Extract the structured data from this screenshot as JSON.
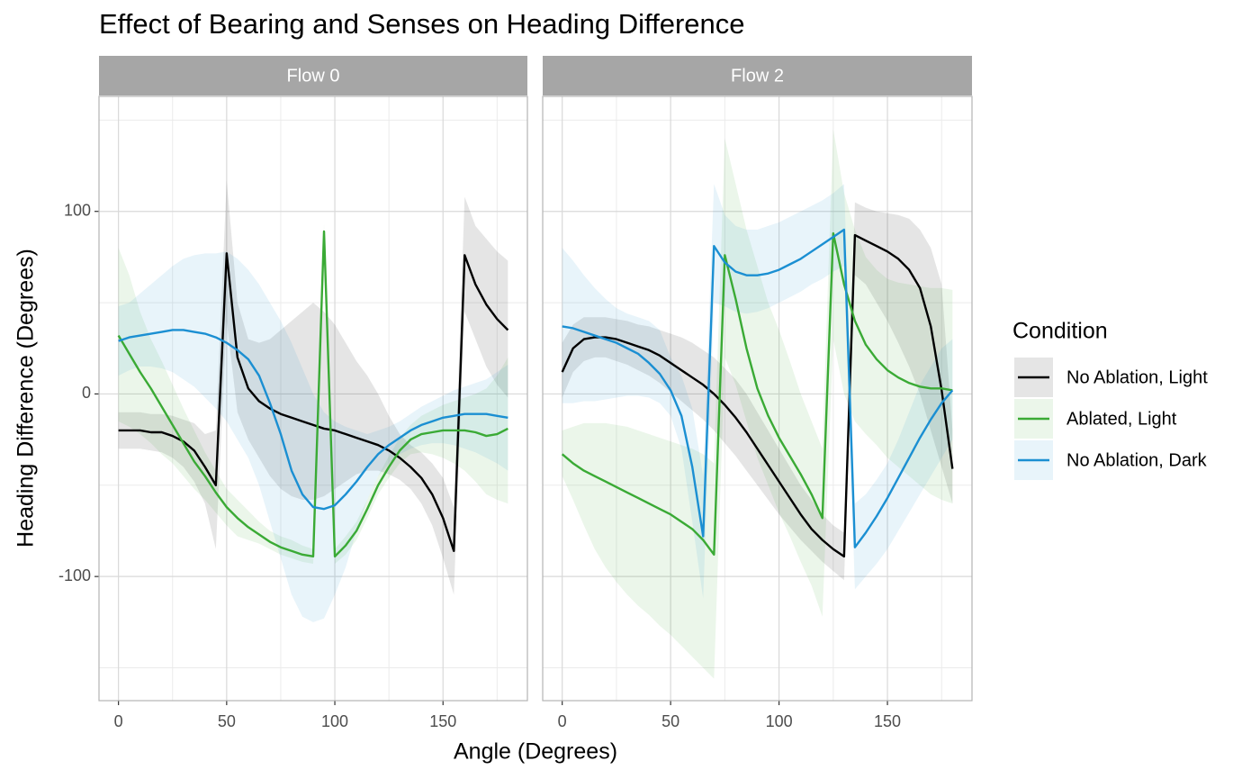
{
  "chart_data": {
    "type": "line",
    "title": "Effect of Bearing and Senses on Heading Difference",
    "xlabel": "Angle (Degrees)",
    "ylabel": "Heading Difference (Degrees)",
    "legend_title": "Condition",
    "legend": "right",
    "grid": true,
    "x": [
      0,
      5,
      10,
      15,
      20,
      25,
      30,
      35,
      40,
      45,
      50,
      55,
      60,
      65,
      70,
      75,
      80,
      85,
      90,
      95,
      100,
      105,
      110,
      115,
      120,
      125,
      130,
      135,
      140,
      145,
      150,
      155,
      160,
      165,
      170,
      175,
      180
    ],
    "xlim": [
      -9,
      189
    ],
    "xticks": [
      0,
      50,
      100,
      150
    ],
    "minor_xticks": [
      25,
      75,
      125,
      175
    ],
    "ylim": [
      -168,
      163
    ],
    "yticks": [
      -100,
      0,
      100
    ],
    "minor_yticks": [
      -150,
      -50,
      50,
      150
    ],
    "facets": [
      {
        "name": "Flow 0",
        "series": [
          {
            "name": "No Ablation, Light",
            "color": "#000000",
            "values": [
              -20,
              -20,
              -20,
              -21,
              -21,
              -23,
              -26,
              -31,
              -40,
              -50,
              77,
              20,
              3,
              -4,
              -8,
              -11,
              -13,
              -15,
              -17,
              -19,
              -20,
              -22,
              -24,
              -26,
              -28,
              -31,
              -35,
              -40,
              -46,
              -55,
              -68,
              -86,
              76,
              60,
              49,
              41,
              35
            ],
            "lower": [
              -30,
              -30,
              -30,
              -31,
              -32,
              -35,
              -40,
              -48,
              -60,
              -85,
              40,
              -10,
              -25,
              -35,
              -45,
              -52,
              -56,
              -58,
              -58,
              -56,
              -52,
              -48,
              -44,
              -42,
              -42,
              -44,
              -47,
              -52,
              -60,
              -72,
              -90,
              -110,
              45,
              30,
              15,
              5,
              -2
            ],
            "upper": [
              -10,
              -10,
              -10,
              -11,
              -11,
              -12,
              -14,
              -16,
              -22,
              -20,
              117,
              50,
              30,
              28,
              30,
              35,
              40,
              45,
              50,
              45,
              38,
              28,
              18,
              10,
              0,
              -12,
              -22,
              -28,
              -32,
              -38,
              -46,
              -62,
              108,
              92,
              85,
              78,
              73
            ]
          },
          {
            "name": "Ablated, Light",
            "color": "#3aaa35",
            "values": [
              32,
              22,
              12,
              3,
              -7,
              -17,
              -27,
              -37,
              -45,
              -54,
              -62,
              -68,
              -73,
              -77,
              -81,
              -84,
              -86,
              -88,
              -89,
              89,
              -89,
              -83,
              -75,
              -63,
              -50,
              -40,
              -31,
              -25,
              -22,
              -21,
              -20,
              -20,
              -20,
              -21,
              -23,
              -22,
              -19
            ],
            "lower": [
              -15,
              -18,
              -22,
              -27,
              -33,
              -38,
              -45,
              -52,
              -58,
              -65,
              -72,
              -78,
              -80,
              -82,
              -85,
              -88,
              -90,
              -92,
              -93,
              85,
              -93,
              -88,
              -80,
              -68,
              -55,
              -46,
              -38,
              -33,
              -32,
              -33,
              -35,
              -38,
              -42,
              -48,
              -55,
              -58,
              -60
            ],
            "upper": [
              80,
              65,
              45,
              30,
              18,
              5,
              -8,
              -20,
              -32,
              -42,
              -52,
              -58,
              -64,
              -70,
              -75,
              -78,
              -80,
              -83,
              -85,
              93,
              -85,
              -78,
              -70,
              -58,
              -45,
              -34,
              -24,
              -17,
              -12,
              -9,
              -6,
              -4,
              -2,
              0,
              3,
              10,
              20
            ]
          },
          {
            "name": "No Ablation, Dark",
            "color": "#1b8fd2",
            "values": [
              29,
              31,
              32,
              33,
              34,
              35,
              35,
              34,
              33,
              31,
              28,
              24,
              19,
              10,
              -5,
              -22,
              -42,
              -55,
              -62,
              -63,
              -61,
              -55,
              -48,
              -40,
              -33,
              -28,
              -24,
              -20,
              -17,
              -15,
              -13,
              -12,
              -11,
              -11,
              -11,
              -12,
              -13
            ],
            "lower": [
              10,
              13,
              15,
              15,
              14,
              12,
              8,
              4,
              -2,
              -8,
              -15,
              -25,
              -35,
              -50,
              -70,
              -90,
              -110,
              -122,
              -125,
              -123,
              -110,
              -95,
              -75,
              -58,
              -45,
              -38,
              -33,
              -30,
              -28,
              -27,
              -27,
              -28,
              -30,
              -32,
              -35,
              -38,
              -42
            ],
            "upper": [
              48,
              50,
              55,
              60,
              65,
              70,
              74,
              76,
              77,
              77,
              78,
              74,
              68,
              60,
              50,
              40,
              28,
              14,
              0,
              -10,
              -15,
              -18,
              -20,
              -22,
              -20,
              -18,
              -15,
              -11,
              -7,
              -4,
              -1,
              2,
              4,
              6,
              8,
              12,
              16
            ]
          }
        ]
      },
      {
        "name": "Flow 2",
        "series": [
          {
            "name": "No Ablation, Light",
            "color": "#000000",
            "values": [
              12,
              25,
              30,
              31,
              31,
              30,
              28,
              26,
              24,
              21,
              17,
              13,
              9,
              5,
              0,
              -6,
              -13,
              -21,
              -30,
              -39,
              -48,
              -57,
              -66,
              -74,
              -80,
              -85,
              -89,
              87,
              84,
              81,
              78,
              74,
              68,
              58,
              37,
              2,
              -41
            ],
            "lower": [
              -2,
              12,
              18,
              20,
              20,
              18,
              16,
              13,
              10,
              6,
              1,
              -4,
              -9,
              -14,
              -20,
              -27,
              -34,
              -42,
              -50,
              -58,
              -66,
              -73,
              -80,
              -86,
              -92,
              -97,
              -102,
              65,
              60,
              50,
              40,
              28,
              15,
              0,
              -20,
              -40,
              -60
            ],
            "upper": [
              28,
              38,
              42,
              42,
              42,
              41,
              40,
              38,
              37,
              35,
              33,
              31,
              28,
              24,
              20,
              14,
              8,
              0,
              -10,
              -20,
              -30,
              -40,
              -50,
              -58,
              -66,
              -72,
              -76,
              105,
              102,
              100,
              99,
              98,
              96,
              90,
              80,
              60,
              -20
            ]
          },
          {
            "name": "Ablated, Light",
            "color": "#3aaa35",
            "values": [
              -33,
              -38,
              -42,
              -45,
              -48,
              -51,
              -54,
              -57,
              -60,
              -63,
              -66,
              -70,
              -74,
              -80,
              -88,
              76,
              52,
              25,
              3,
              -12,
              -24,
              -34,
              -44,
              -55,
              -68,
              88,
              60,
              40,
              27,
              19,
              13,
              9,
              6,
              4,
              3,
              3,
              2
            ],
            "lower": [
              -45,
              -58,
              -72,
              -85,
              -95,
              -103,
              -110,
              -116,
              -121,
              -127,
              -132,
              -138,
              -144,
              -150,
              -156,
              20,
              5,
              -15,
              -35,
              -50,
              -65,
              -78,
              -92,
              -105,
              -122,
              30,
              0,
              -15,
              -22,
              -28,
              -35,
              -40,
              -45,
              -50,
              -55,
              -58,
              -60
            ],
            "upper": [
              -20,
              -18,
              -16,
              -16,
              -16,
              -17,
              -18,
              -20,
              -22,
              -24,
              -26,
              -28,
              -30,
              -33,
              -38,
              140,
              115,
              90,
              70,
              50,
              35,
              18,
              0,
              -15,
              -30,
              145,
              110,
              90,
              75,
              68,
              63,
              61,
              60,
              59,
              58,
              58,
              57
            ]
          },
          {
            "name": "No Ablation, Dark",
            "color": "#1b8fd2",
            "values": [
              37,
              36,
              34,
              32,
              30,
              28,
              25,
              22,
              17,
              11,
              2,
              -12,
              -40,
              -78,
              81,
              72,
              67,
              65,
              65,
              66,
              68,
              71,
              74,
              78,
              82,
              86,
              90,
              -84,
              -76,
              -67,
              -57,
              -46,
              -35,
              -24,
              -14,
              -5,
              2
            ],
            "lower": [
              -5,
              -5,
              -4,
              -4,
              -3,
              -2,
              -1,
              -1,
              -2,
              -5,
              -12,
              -30,
              -70,
              -112,
              50,
              48,
              45,
              44,
              45,
              47,
              50,
              53,
              56,
              60,
              63,
              67,
              70,
              -107,
              -100,
              -93,
              -85,
              -75,
              -65,
              -55,
              -45,
              -35,
              -25
            ],
            "upper": [
              80,
              73,
              65,
              58,
              52,
              47,
              44,
              42,
              40,
              35,
              20,
              10,
              -8,
              -45,
              115,
              98,
              92,
              90,
              90,
              92,
              94,
              97,
              100,
              103,
              106,
              110,
              115,
              -60,
              -55,
              -47,
              -38,
              -25,
              -10,
              5,
              15,
              25,
              30
            ]
          }
        ]
      }
    ]
  }
}
